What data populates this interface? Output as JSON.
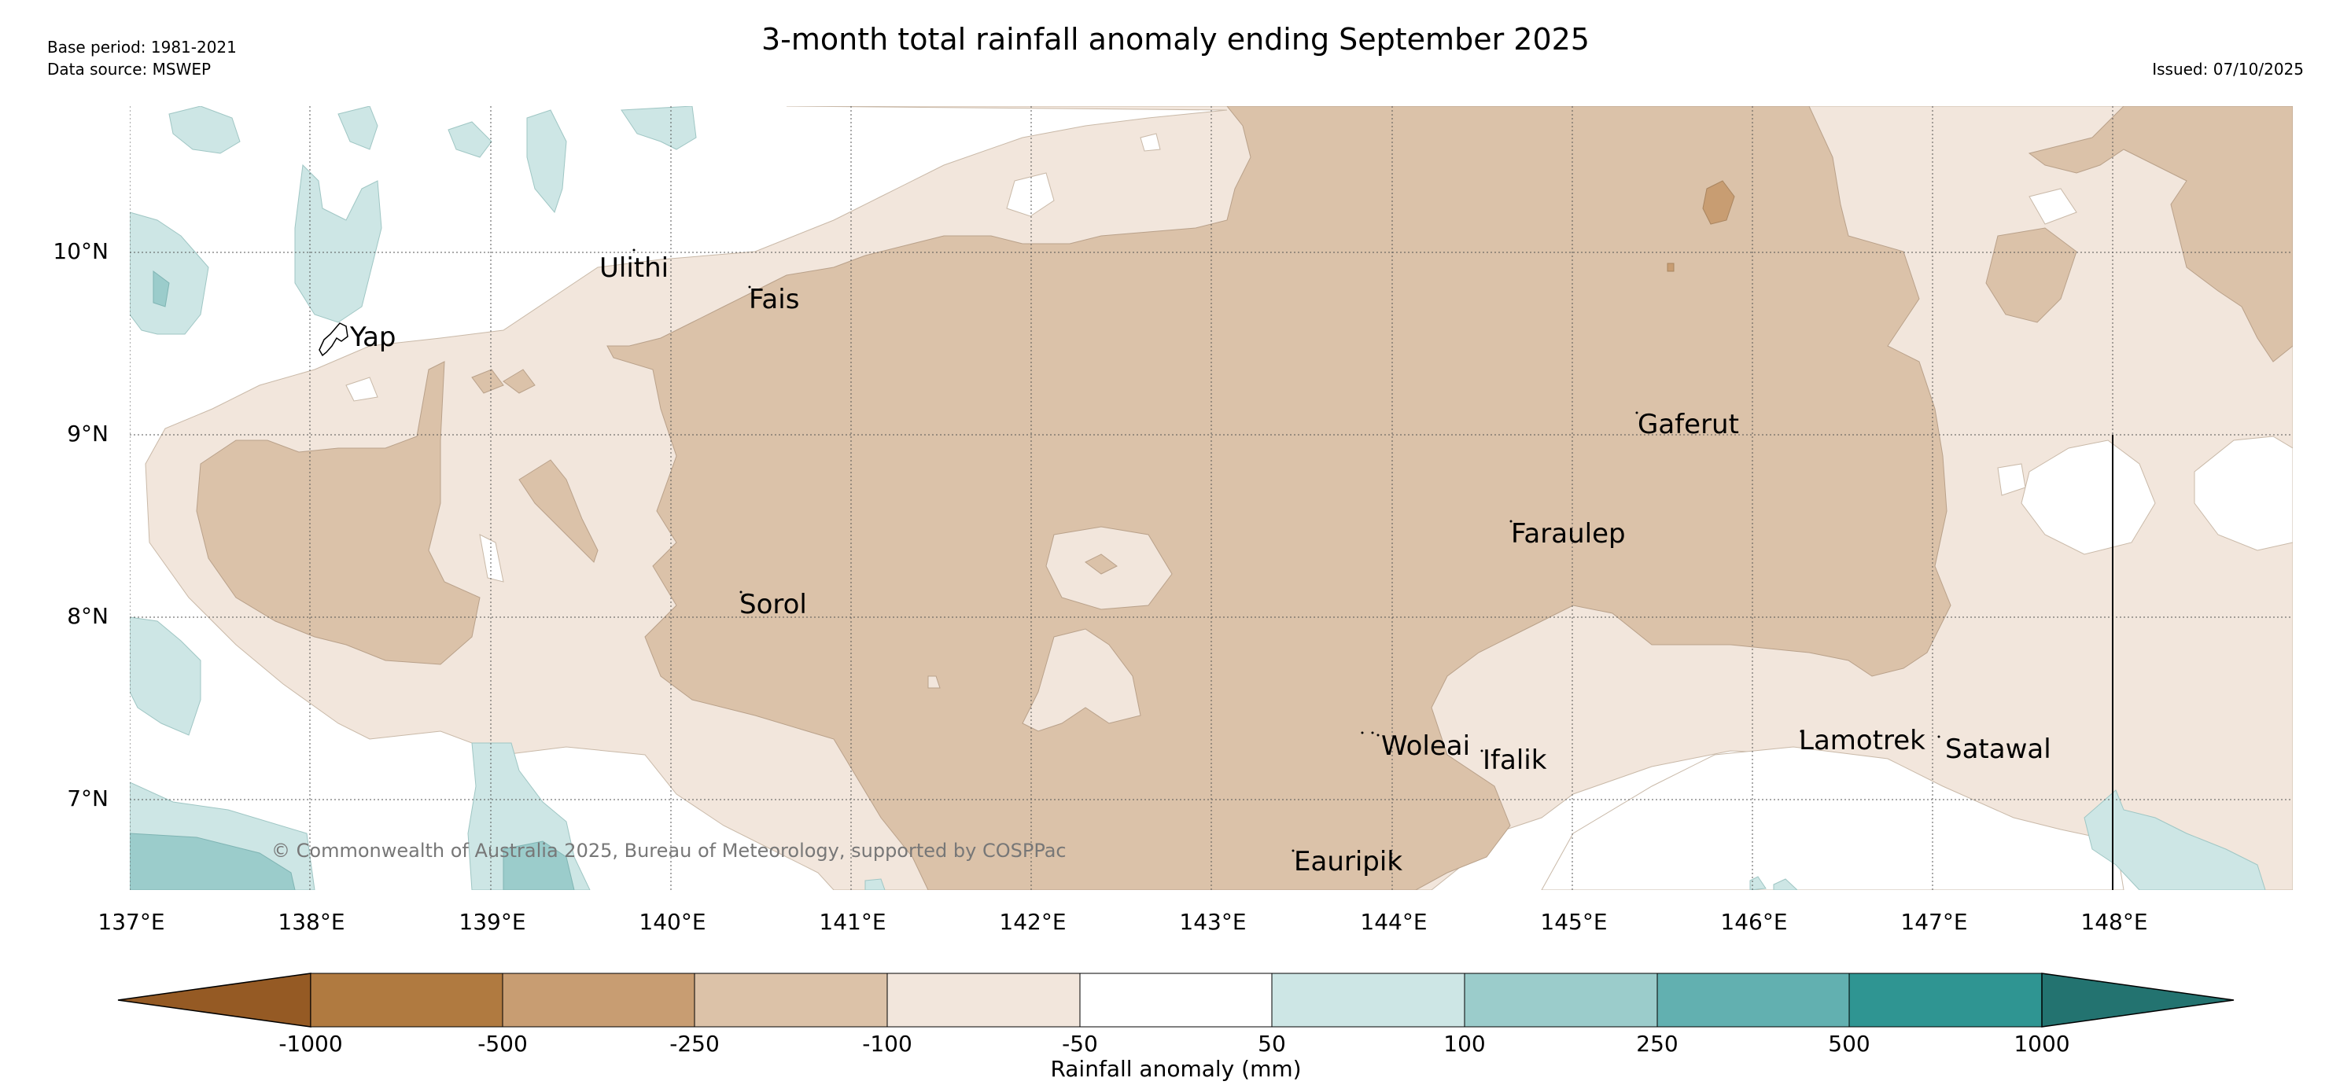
{
  "header": {
    "title": "3-month total rainfall anomaly ending September 2025",
    "base_period": "Base period: 1981-2021",
    "data_source": "Data source: MSWEP",
    "issued": "Issued: 07/10/2025"
  },
  "map": {
    "extent": {
      "lon_min": 137.0,
      "lon_max": 149.0,
      "lat_min": 6.5,
      "lat_max": 10.8
    },
    "latitude_labels": [
      {
        "value": 10,
        "label": "10°N"
      },
      {
        "value": 9,
        "label": "9°N"
      },
      {
        "value": 8,
        "label": "8°N"
      },
      {
        "value": 7,
        "label": "7°N"
      }
    ],
    "longitude_labels": [
      {
        "value": 137,
        "label": "137°E"
      },
      {
        "value": 138,
        "label": "138°E"
      },
      {
        "value": 139,
        "label": "139°E"
      },
      {
        "value": 140,
        "label": "140°E"
      },
      {
        "value": 141,
        "label": "141°E"
      },
      {
        "value": 142,
        "label": "142°E"
      },
      {
        "value": 143,
        "label": "143°E"
      },
      {
        "value": 144,
        "label": "144°E"
      },
      {
        "value": 145,
        "label": "145°E"
      },
      {
        "value": 146,
        "label": "146°E"
      },
      {
        "value": 147,
        "label": "147°E"
      },
      {
        "value": 148,
        "label": "148°E"
      }
    ],
    "places": [
      {
        "name": "Yap",
        "lon": 138.23,
        "lat": 9.52
      },
      {
        "name": "Ulithi",
        "lon": 139.72,
        "lat": 9.93
      },
      {
        "name": "Fais",
        "lon": 140.52,
        "lat": 9.76
      },
      {
        "name": "Gaferut",
        "lon": 145.38,
        "lat": 9.06
      },
      {
        "name": "Faraulep",
        "lon": 144.68,
        "lat": 8.46
      },
      {
        "name": "Sorol",
        "lon": 140.39,
        "lat": 8.07
      },
      {
        "name": "Woleai",
        "lon": 143.9,
        "lat": 7.33
      },
      {
        "name": "Ifalik",
        "lon": 144.45,
        "lat": 7.24
      },
      {
        "name": "Lamotrek",
        "lon": 146.33,
        "lat": 7.35
      },
      {
        "name": "Satawal",
        "lon": 147.03,
        "lat": 7.31
      },
      {
        "name": "Eauripik",
        "lon": 143.04,
        "lat": 6.69
      }
    ],
    "copyright": "© Commonwealth of Australia 2025, Bureau of Meteorology, supported by COSPPac"
  },
  "colorbar": {
    "label": "Rainfall anomaly (mm)",
    "ticks": [
      "-1000",
      "-500",
      "-250",
      "-100",
      "-50",
      "50",
      "100",
      "250",
      "500",
      "1000"
    ],
    "colors": [
      "#955a24",
      "#b07a40",
      "#c89d72",
      "#dcc2a8",
      "#f2e6dc",
      "#ffffff",
      "#cde6e5",
      "#9bcccb",
      "#62b0b0",
      "#2f9592",
      "#237370"
    ]
  }
}
